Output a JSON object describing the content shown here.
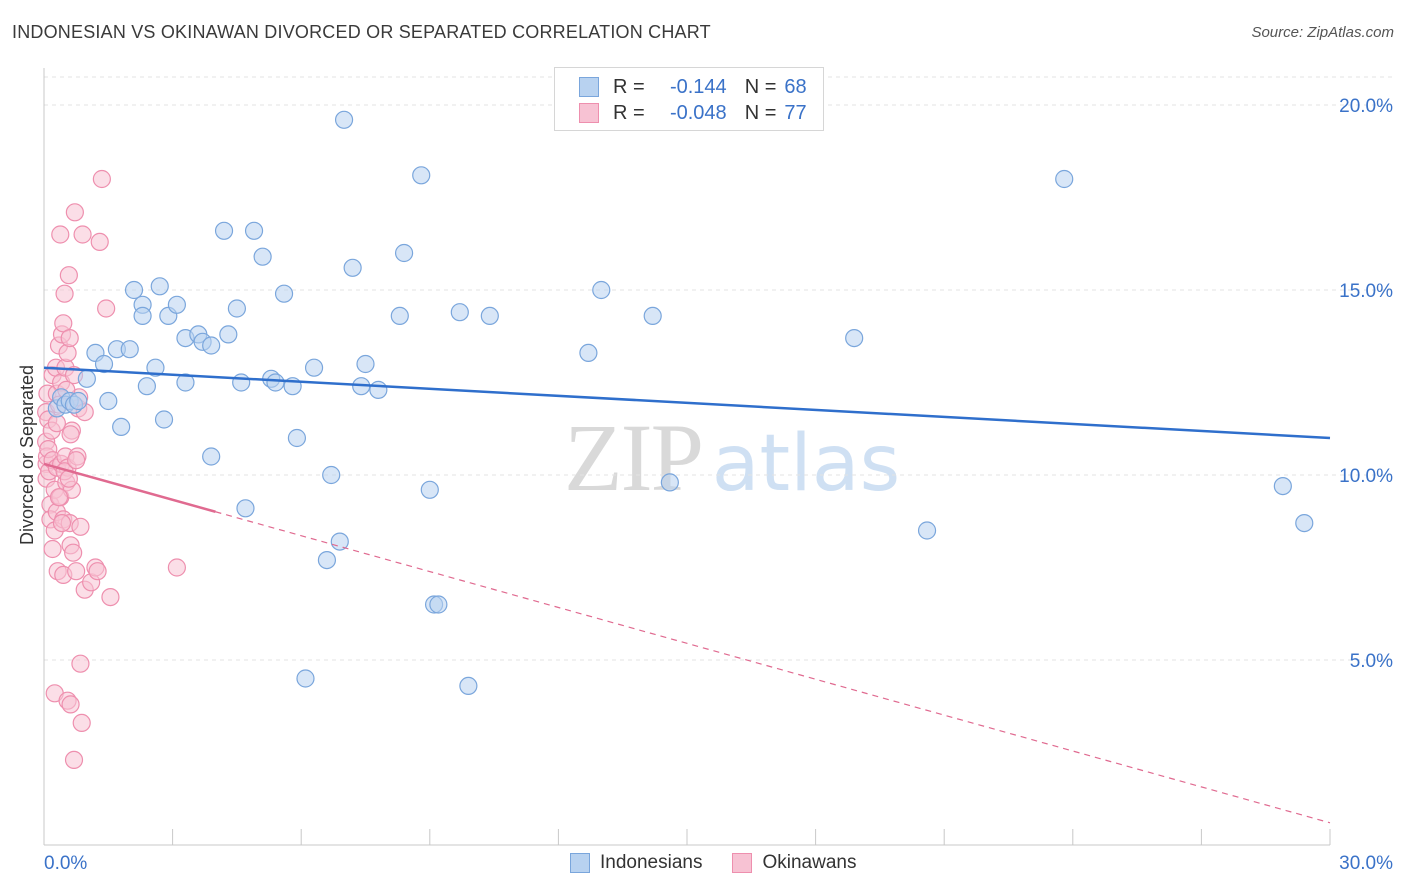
{
  "header": {
    "title": "INDONESIAN VS OKINAWAN DIVORCED OR SEPARATED CORRELATION CHART",
    "source": "Source: ZipAtlas.com"
  },
  "legend": {
    "r_label": "R =",
    "n_label": "N =",
    "series": [
      {
        "name": "Indonesians",
        "r": "-0.144",
        "n": "68"
      },
      {
        "name": "Okinawans",
        "r": "-0.048",
        "n": "77"
      }
    ]
  },
  "watermark": {
    "zip": "ZIP",
    "atlas": "atlas"
  },
  "colors": {
    "blue_fill": "#b8d2f0",
    "blue_stroke": "#7aa6dc",
    "blue_line": "#2f6fcc",
    "blue_text": "#3a72c8",
    "pink_fill": "#f7c2d3",
    "pink_stroke": "#ee8fae",
    "pink_line": "#e06a90",
    "grid": "#e3e3e3",
    "axis": "#c8c8c8"
  },
  "chart_data": {
    "type": "scatter",
    "title": "INDONESIAN VS OKINAWAN DIVORCED OR SEPARATED CORRELATION CHART",
    "xlabel": "",
    "ylabel": "Divorced or Separated",
    "xlim": [
      0,
      30
    ],
    "ylim": [
      0,
      21
    ],
    "x_tick_labels": [
      "0.0%",
      "30.0%"
    ],
    "y_ticks": [
      5,
      10,
      15,
      20
    ],
    "y_tick_labels": [
      "5.0%",
      "10.0%",
      "15.0%",
      "20.0%"
    ],
    "grid": true,
    "legend_position": "bottom-center",
    "series": [
      {
        "name": "Indonesians",
        "r": -0.144,
        "n": 68,
        "trend": {
          "x0": 0.0,
          "y0": 12.9,
          "x1": 30.0,
          "y1": 11.0,
          "dashed_from": null
        },
        "points": [
          [
            0.3,
            11.8
          ],
          [
            0.4,
            12.1
          ],
          [
            0.5,
            11.9
          ],
          [
            0.6,
            12.0
          ],
          [
            0.7,
            11.9
          ],
          [
            0.8,
            12.0
          ],
          [
            1.0,
            12.6
          ],
          [
            1.2,
            13.3
          ],
          [
            1.4,
            13.0
          ],
          [
            1.5,
            12.0
          ],
          [
            1.7,
            13.4
          ],
          [
            1.8,
            11.3
          ],
          [
            2.0,
            13.4
          ],
          [
            2.1,
            15.0
          ],
          [
            2.3,
            14.6
          ],
          [
            2.3,
            14.3
          ],
          [
            2.6,
            12.9
          ],
          [
            2.7,
            15.1
          ],
          [
            2.8,
            11.5
          ],
          [
            2.9,
            14.3
          ],
          [
            3.1,
            14.6
          ],
          [
            3.3,
            12.5
          ],
          [
            3.3,
            13.7
          ],
          [
            3.6,
            13.8
          ],
          [
            3.7,
            13.6
          ],
          [
            3.9,
            13.5
          ],
          [
            3.9,
            10.5
          ],
          [
            4.2,
            16.6
          ],
          [
            4.3,
            13.8
          ],
          [
            4.5,
            14.5
          ],
          [
            4.6,
            12.5
          ],
          [
            4.7,
            9.1
          ],
          [
            4.9,
            16.6
          ],
          [
            5.1,
            15.9
          ],
          [
            5.3,
            12.6
          ],
          [
            5.4,
            12.5
          ],
          [
            5.6,
            14.9
          ],
          [
            5.8,
            12.4
          ],
          [
            5.9,
            11.0
          ],
          [
            6.1,
            4.5
          ],
          [
            6.3,
            12.9
          ],
          [
            6.6,
            7.7
          ],
          [
            6.7,
            10.0
          ],
          [
            6.9,
            8.2
          ],
          [
            7.0,
            19.6
          ],
          [
            7.2,
            15.6
          ],
          [
            7.4,
            12.4
          ],
          [
            7.5,
            13.0
          ],
          [
            7.8,
            12.3
          ],
          [
            8.3,
            14.3
          ],
          [
            8.4,
            16.0
          ],
          [
            8.8,
            18.1
          ],
          [
            9.0,
            9.6
          ],
          [
            9.1,
            6.5
          ],
          [
            9.2,
            6.5
          ],
          [
            9.7,
            14.4
          ],
          [
            9.9,
            4.3
          ],
          [
            10.4,
            14.3
          ],
          [
            12.7,
            13.3
          ],
          [
            13.0,
            15.0
          ],
          [
            14.2,
            14.3
          ],
          [
            14.6,
            9.8
          ],
          [
            18.9,
            13.7
          ],
          [
            20.6,
            8.5
          ],
          [
            23.8,
            18.0
          ],
          [
            28.9,
            9.7
          ],
          [
            29.4,
            8.7
          ],
          [
            2.4,
            12.4
          ]
        ]
      },
      {
        "name": "Okinawans",
        "r": -0.048,
        "n": 77,
        "trend": {
          "x0": 0.0,
          "y0": 10.3,
          "x1": 30.0,
          "y1": 0.6,
          "dashed_from": 4.0
        },
        "points": [
          [
            0.05,
            11.7
          ],
          [
            0.05,
            10.9
          ],
          [
            0.06,
            10.3
          ],
          [
            0.06,
            9.9
          ],
          [
            0.07,
            10.5
          ],
          [
            0.08,
            12.2
          ],
          [
            0.1,
            11.5
          ],
          [
            0.1,
            10.7
          ],
          [
            0.12,
            10.1
          ],
          [
            0.15,
            9.2
          ],
          [
            0.15,
            8.8
          ],
          [
            0.18,
            11.2
          ],
          [
            0.2,
            12.7
          ],
          [
            0.2,
            10.4
          ],
          [
            0.25,
            9.6
          ],
          [
            0.25,
            8.5
          ],
          [
            0.25,
            4.1
          ],
          [
            0.28,
            12.9
          ],
          [
            0.3,
            12.2
          ],
          [
            0.3,
            10.2
          ],
          [
            0.3,
            9.0
          ],
          [
            0.32,
            7.4
          ],
          [
            0.35,
            13.5
          ],
          [
            0.35,
            11.9
          ],
          [
            0.38,
            16.5
          ],
          [
            0.38,
            9.4
          ],
          [
            0.4,
            12.5
          ],
          [
            0.4,
            10.3
          ],
          [
            0.42,
            13.8
          ],
          [
            0.45,
            14.1
          ],
          [
            0.45,
            8.8
          ],
          [
            0.45,
            7.3
          ],
          [
            0.48,
            14.9
          ],
          [
            0.5,
            12.9
          ],
          [
            0.5,
            10.5
          ],
          [
            0.52,
            9.8
          ],
          [
            0.55,
            13.3
          ],
          [
            0.55,
            10.2
          ],
          [
            0.55,
            3.9
          ],
          [
            0.58,
            15.4
          ],
          [
            0.6,
            13.7
          ],
          [
            0.6,
            8.7
          ],
          [
            0.62,
            8.1
          ],
          [
            0.62,
            3.8
          ],
          [
            0.65,
            11.2
          ],
          [
            0.65,
            9.6
          ],
          [
            0.68,
            7.9
          ],
          [
            0.7,
            12.7
          ],
          [
            0.7,
            2.3
          ],
          [
            0.72,
            17.1
          ],
          [
            0.75,
            7.4
          ],
          [
            0.78,
            10.5
          ],
          [
            0.8,
            11.8
          ],
          [
            0.82,
            12.1
          ],
          [
            0.85,
            8.6
          ],
          [
            0.85,
            4.9
          ],
          [
            0.88,
            3.3
          ],
          [
            0.9,
            16.5
          ],
          [
            0.95,
            11.7
          ],
          [
            0.95,
            6.9
          ],
          [
            1.1,
            7.1
          ],
          [
            1.2,
            7.5
          ],
          [
            1.25,
            7.4
          ],
          [
            1.3,
            16.3
          ],
          [
            1.35,
            18.0
          ],
          [
            1.45,
            14.5
          ],
          [
            1.55,
            6.7
          ],
          [
            3.1,
            7.5
          ],
          [
            0.35,
            9.4
          ],
          [
            0.42,
            8.7
          ],
          [
            0.48,
            10.1
          ],
          [
            0.52,
            12.3
          ],
          [
            0.58,
            9.9
          ],
          [
            0.62,
            11.1
          ],
          [
            0.3,
            11.4
          ],
          [
            0.2,
            8.0
          ],
          [
            0.75,
            10.4
          ]
        ]
      }
    ]
  }
}
